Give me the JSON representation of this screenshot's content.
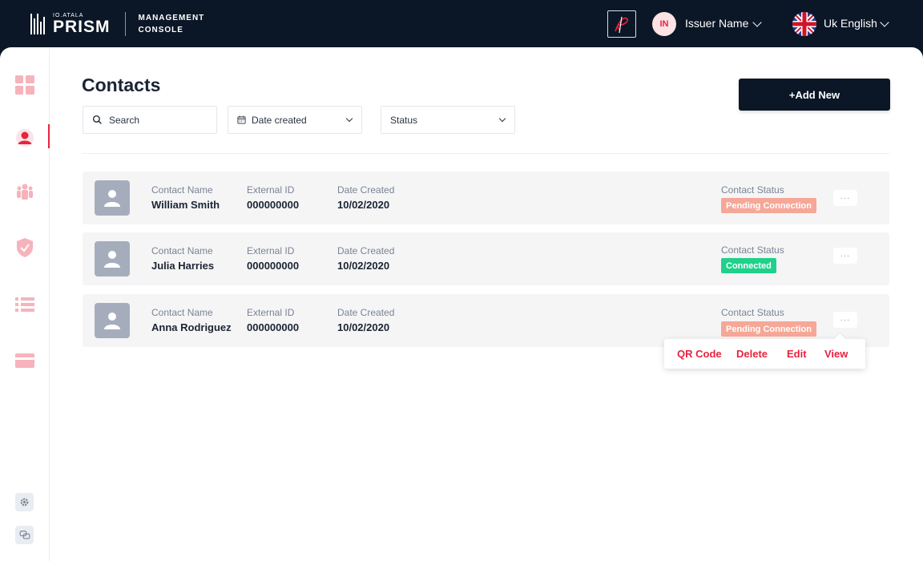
{
  "header": {
    "brand_small": "IO.ATALA",
    "brand_big": "PRISM",
    "brand_sub_line1": "MANAGEMENT",
    "brand_sub_line2": "CONSOLE",
    "user_initials": "IN",
    "user_name": "Issuer Name",
    "language": "Uk English"
  },
  "sidebar": {
    "items": [
      {
        "name": "dashboard-icon"
      },
      {
        "name": "contacts-icon",
        "active": true
      },
      {
        "name": "groups-icon"
      },
      {
        "name": "credentials-icon"
      },
      {
        "name": "templates-icon"
      },
      {
        "name": "payments-icon"
      }
    ],
    "bottom": [
      {
        "name": "settings-icon"
      },
      {
        "name": "chat-icon"
      }
    ]
  },
  "main": {
    "title": "Contacts",
    "add_button": "+Add New",
    "filters": {
      "search_placeholder": "Search",
      "date_label": "Date created",
      "status_label": "Status"
    },
    "column_labels": {
      "name": "Contact Name",
      "external_id": "External ID",
      "date": "Date Created",
      "status": "Contact Status"
    },
    "contacts": [
      {
        "name": "William Smith",
        "external_id": "000000000",
        "date": "10/02/2020",
        "status": "Pending Connection",
        "status_color": "#f6a797"
      },
      {
        "name": "Julia Harries",
        "external_id": "000000000",
        "date": "10/02/2020",
        "status": "Connected",
        "status_color": "#1fd18a"
      },
      {
        "name": "Anna Rodriguez",
        "external_id": "000000000",
        "date": "10/02/2020",
        "status": "Pending Connection",
        "status_color": "#f6a797"
      }
    ],
    "more_label": "···",
    "action_menu": {
      "qr_code": "QR Code",
      "delete": "Delete",
      "edit": "Edit",
      "view": "View"
    }
  },
  "colors": {
    "accent": "#e8233d",
    "dark": "#0b1726",
    "sidebar_icon": "#f6b3bb"
  }
}
